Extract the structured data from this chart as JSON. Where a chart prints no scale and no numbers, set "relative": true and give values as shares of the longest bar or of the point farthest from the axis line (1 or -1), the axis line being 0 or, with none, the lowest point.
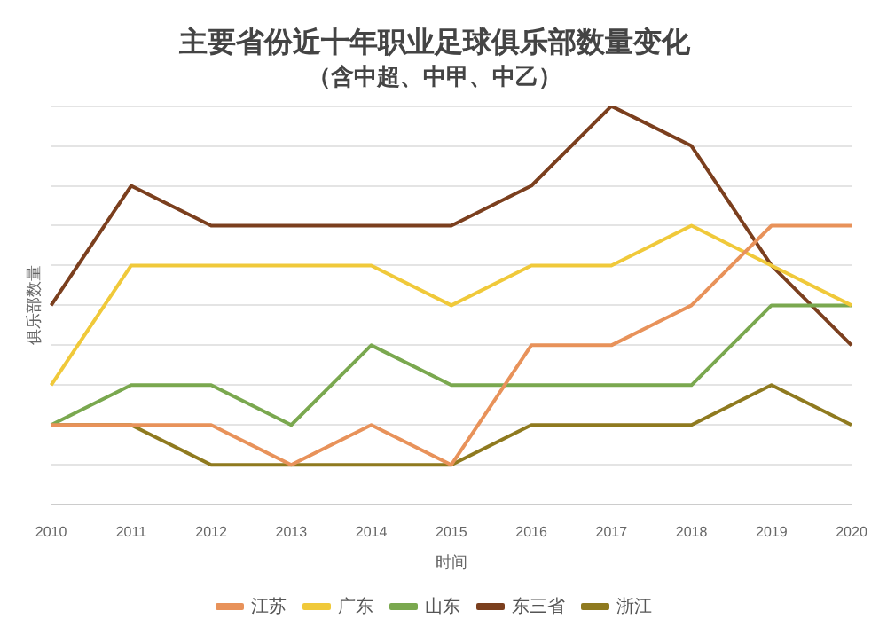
{
  "chart_data": {
    "type": "line",
    "title": "主要省份近十年职业足球俱乐部数量变化",
    "subtitle": "（含中超、中甲、中乙）",
    "xlabel": "时间",
    "ylabel": "俱乐部数量",
    "relative": true,
    "grid": "y",
    "legend": "bottom",
    "marker": "none",
    "categories": [
      "2010",
      "2011",
      "2012",
      "2013",
      "2014",
      "2015",
      "2016",
      "2017",
      "2018",
      "2019",
      "2020"
    ],
    "series": [
      {
        "name": "江苏",
        "color": "#e8925a",
        "values": [
          0.2,
          0.2,
          0.2,
          0.1,
          0.2,
          0.1,
          0.4,
          0.4,
          0.5,
          0.7,
          0.7
        ]
      },
      {
        "name": "广东",
        "color": "#f0c93a",
        "values": [
          0.3,
          0.6,
          0.6,
          0.6,
          0.6,
          0.5,
          0.6,
          0.6,
          0.7,
          0.6,
          0.5
        ]
      },
      {
        "name": "山东",
        "color": "#7aa84f",
        "values": [
          0.2,
          0.3,
          0.3,
          0.2,
          0.4,
          0.3,
          0.3,
          0.3,
          0.3,
          0.5,
          0.5
        ]
      },
      {
        "name": "东三省",
        "color": "#7b3f1e",
        "values": [
          0.5,
          0.8,
          0.7,
          0.7,
          0.7,
          0.7,
          0.8,
          1,
          0.9,
          0.6,
          0.4
        ]
      },
      {
        "name": "浙江",
        "color": "#8f7a1f",
        "values": [
          0.2,
          0.2,
          0.1,
          0.1,
          0.1,
          0.1,
          0.2,
          0.2,
          0.2,
          0.3,
          0.2
        ]
      }
    ]
  }
}
